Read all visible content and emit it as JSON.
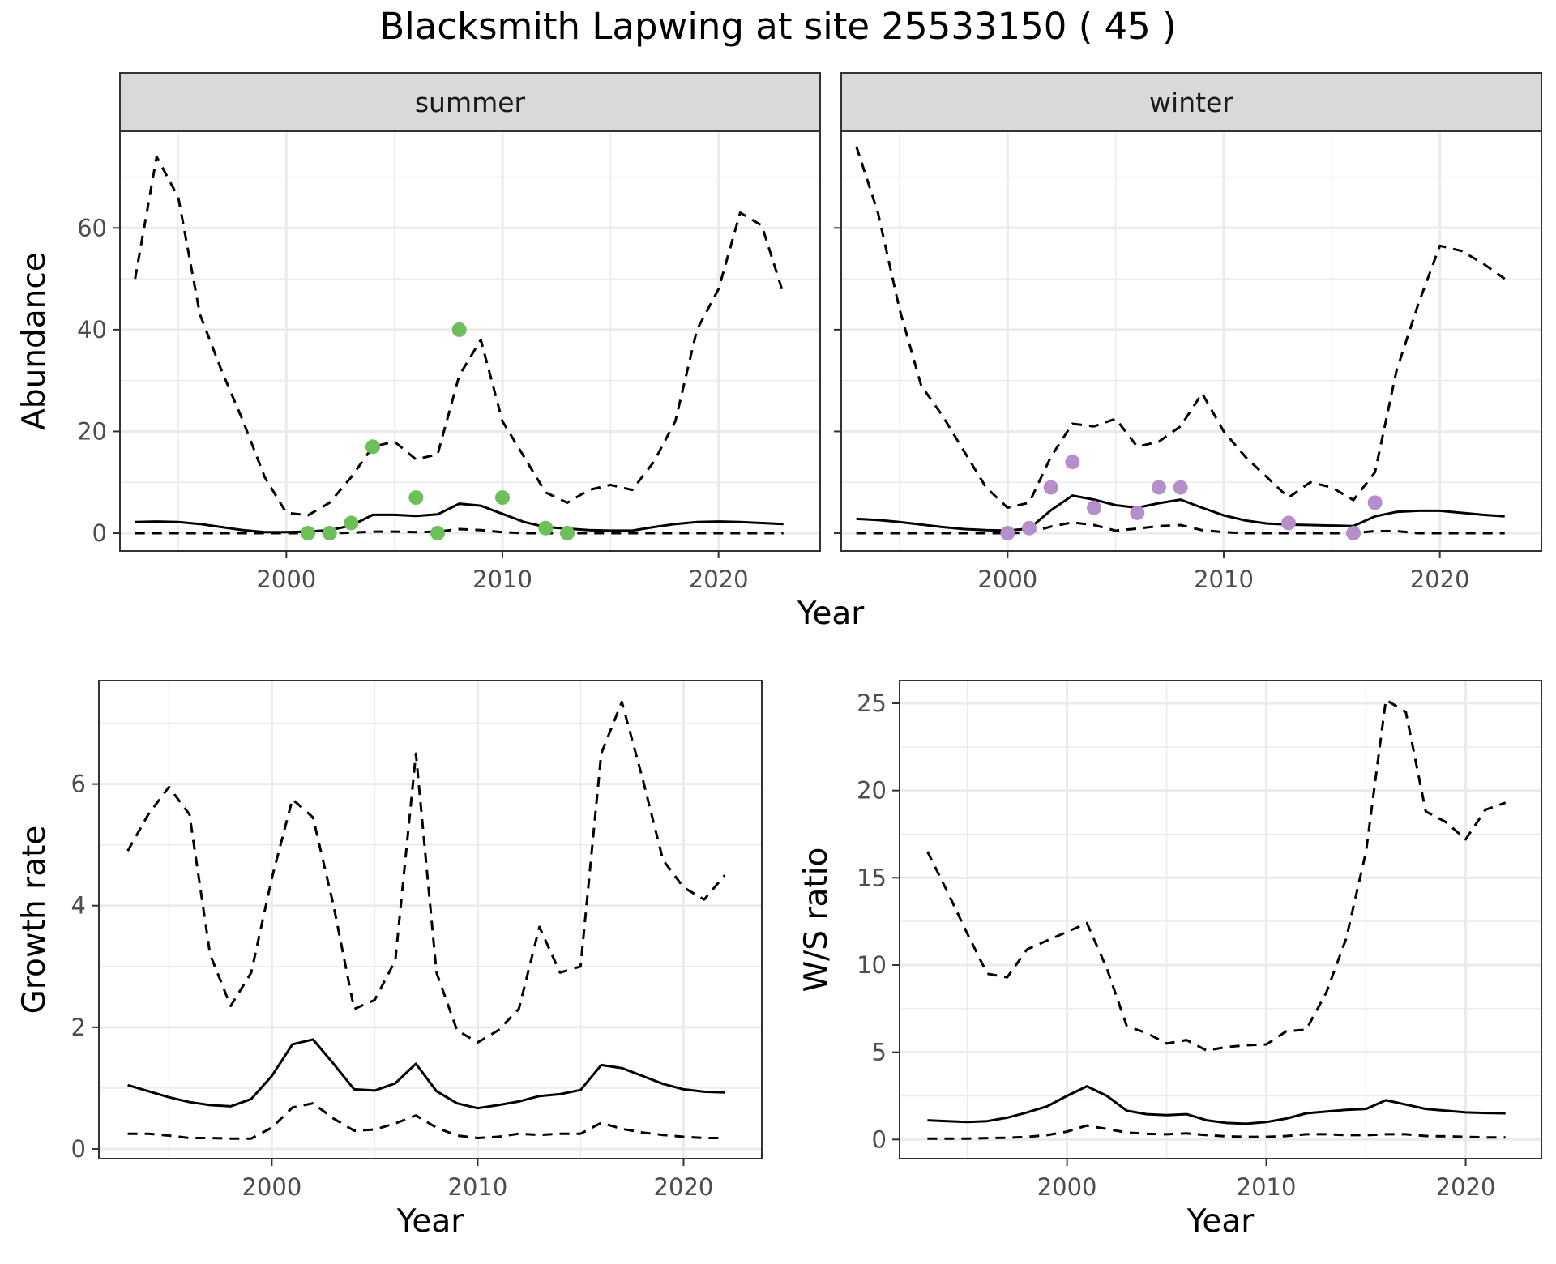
{
  "title": "Blacksmith Lapwing at site 25533150 ( 45 )",
  "colors": {
    "summer_points": "#6dbf5a",
    "winter_points": "#b48fcc",
    "line": "#000000",
    "strip_bg": "#d9d9d9",
    "grid": "#ebebeb"
  },
  "chart_data": [
    {
      "type": "line",
      "panel": "summer",
      "facet_label": "summer",
      "xlabel": "Year",
      "ylabel": "Abundance",
      "xlim": [
        1992.3,
        2024.7
      ],
      "ylim": [
        -3.5,
        79
      ],
      "x_ticks": [
        2000,
        2010,
        2020
      ],
      "y_ticks": [
        0,
        20,
        40,
        60
      ],
      "grid": true,
      "x": [
        1993,
        1994,
        1995,
        1996,
        1997,
        1998,
        1999,
        2000,
        2001,
        2002,
        2003,
        2004,
        2005,
        2006,
        2007,
        2008,
        2009,
        2010,
        2011,
        2012,
        2013,
        2014,
        2015,
        2016,
        2017,
        2018,
        2019,
        2020,
        2021,
        2022,
        2023
      ],
      "series": [
        {
          "style": "dashed",
          "values": [
            50,
            74,
            66,
            43,
            32,
            22,
            11,
            4,
            3.5,
            6,
            11,
            17,
            18,
            14.5,
            15.5,
            31,
            38,
            22,
            15,
            8,
            6,
            8.5,
            9.5,
            8.5,
            14,
            22,
            40,
            48,
            63,
            60.5,
            47
          ]
        },
        {
          "style": "solid",
          "values": [
            2.2,
            2.3,
            2.2,
            1.8,
            1.2,
            0.6,
            0.2,
            0.2,
            0.3,
            0.6,
            1.5,
            3.6,
            3.6,
            3.4,
            3.7,
            5.8,
            5.4,
            3.8,
            2.2,
            1.2,
            0.9,
            0.6,
            0.5,
            0.5,
            1.2,
            1.8,
            2.2,
            2.3,
            2.2,
            2.0,
            1.8
          ]
        },
        {
          "style": "dashed",
          "values": [
            0,
            0,
            0,
            0,
            0,
            0,
            0,
            0,
            0,
            0,
            0.1,
            0.3,
            0.3,
            0.2,
            0.3,
            0.8,
            0.6,
            0.2,
            0,
            0,
            0,
            0,
            0,
            0,
            0,
            0,
            0,
            0,
            0,
            0,
            0
          ]
        }
      ],
      "points": {
        "x": [
          2001,
          2002,
          2003,
          2004,
          2006,
          2007,
          2008,
          2010,
          2012,
          2013
        ],
        "y": [
          0,
          0,
          2,
          17,
          7,
          0,
          40,
          7,
          1,
          0
        ]
      }
    },
    {
      "type": "line",
      "panel": "winter",
      "facet_label": "winter",
      "xlabel": "Year",
      "ylabel": "",
      "xlim": [
        1992.3,
        2024.7
      ],
      "ylim": [
        -3.5,
        79
      ],
      "x_ticks": [
        2000,
        2010,
        2020
      ],
      "y_ticks": [
        0,
        20,
        40,
        60
      ],
      "grid": true,
      "x": [
        1993,
        1994,
        1995,
        1996,
        1997,
        1998,
        1999,
        2000,
        2001,
        2002,
        2003,
        2004,
        2005,
        2006,
        2007,
        2008,
        2009,
        2010,
        2011,
        2012,
        2013,
        2014,
        2015,
        2016,
        2017,
        2018,
        2019,
        2020,
        2021,
        2022,
        2023
      ],
      "series": [
        {
          "style": "dashed",
          "values": [
            76,
            63,
            44,
            29,
            23,
            16,
            9,
            5,
            6,
            15,
            21.5,
            21,
            22.5,
            17,
            18,
            21,
            27.5,
            20,
            15,
            11,
            7,
            10,
            9,
            6.5,
            12,
            32,
            45,
            56.5,
            55.5,
            53,
            50
          ]
        },
        {
          "style": "solid",
          "values": [
            2.8,
            2.6,
            2.2,
            1.7,
            1.2,
            0.8,
            0.6,
            0.5,
            0.9,
            4.5,
            7.4,
            6.6,
            5.5,
            5.0,
            5.9,
            6.6,
            5.0,
            3.5,
            2.5,
            1.9,
            1.7,
            1.6,
            1.5,
            1.4,
            3.3,
            4.2,
            4.4,
            4.4,
            4.0,
            3.6,
            3.3
          ]
        },
        {
          "style": "dashed",
          "values": [
            0,
            0,
            0,
            0,
            0,
            0,
            0,
            0,
            0.1,
            1.3,
            2.1,
            1.6,
            0.5,
            0.9,
            1.4,
            1.6,
            0.6,
            0.2,
            0,
            0,
            0,
            0,
            0,
            0,
            0.4,
            0.4,
            0,
            0,
            0,
            0,
            0
          ]
        }
      ],
      "points": {
        "x": [
          2000,
          2001,
          2002,
          2003,
          2004,
          2006,
          2007,
          2008,
          2013,
          2016,
          2017
        ],
        "y": [
          0,
          1,
          9,
          14,
          5,
          4,
          9,
          9,
          2,
          0,
          6
        ]
      }
    },
    {
      "type": "line",
      "panel": "growth",
      "xlabel": "Year",
      "ylabel": "Growth rate",
      "xlim": [
        1991.6,
        2023.8
      ],
      "ylim": [
        -0.16,
        7.7
      ],
      "x_ticks": [
        2000,
        2010,
        2020
      ],
      "y_ticks": [
        0,
        2,
        4,
        6
      ],
      "grid": true,
      "x": [
        1993,
        1994,
        1995,
        1996,
        1997,
        1998,
        1999,
        2000,
        2001,
        2002,
        2003,
        2004,
        2005,
        2006,
        2007,
        2008,
        2009,
        2010,
        2011,
        2012,
        2013,
        2014,
        2015,
        2016,
        2017,
        2018,
        2019,
        2020,
        2021,
        2022
      ],
      "series": [
        {
          "style": "dashed",
          "values": [
            4.9,
            5.5,
            5.95,
            5.5,
            3.2,
            2.35,
            2.9,
            4.45,
            5.75,
            5.45,
            4.0,
            2.3,
            2.45,
            3.1,
            6.5,
            2.9,
            1.95,
            1.75,
            1.95,
            2.3,
            3.65,
            2.9,
            3.0,
            6.5,
            7.35,
            6.1,
            4.75,
            4.3,
            4.1,
            4.5
          ]
        },
        {
          "style": "solid",
          "values": [
            1.05,
            0.95,
            0.85,
            0.77,
            0.72,
            0.7,
            0.82,
            1.2,
            1.72,
            1.8,
            1.4,
            0.98,
            0.96,
            1.08,
            1.4,
            0.95,
            0.75,
            0.67,
            0.72,
            0.78,
            0.87,
            0.9,
            0.97,
            1.38,
            1.33,
            1.2,
            1.07,
            0.98,
            0.94,
            0.93
          ]
        },
        {
          "style": "dashed",
          "values": [
            0.25,
            0.25,
            0.22,
            0.18,
            0.18,
            0.17,
            0.17,
            0.35,
            0.68,
            0.75,
            0.5,
            0.3,
            0.32,
            0.42,
            0.55,
            0.35,
            0.22,
            0.18,
            0.2,
            0.25,
            0.23,
            0.25,
            0.25,
            0.43,
            0.33,
            0.27,
            0.23,
            0.2,
            0.18,
            0.18
          ]
        }
      ]
    },
    {
      "type": "line",
      "panel": "ws_ratio",
      "xlabel": "Year",
      "ylabel": "W/S ratio",
      "xlim": [
        1991.6,
        2023.8
      ],
      "ylim": [
        -1.1,
        26.3
      ],
      "x_ticks": [
        2000,
        2010,
        2020
      ],
      "y_ticks": [
        0,
        5,
        10,
        15,
        20,
        25
      ],
      "grid": true,
      "x": [
        1993,
        1994,
        1995,
        1996,
        1997,
        1998,
        1999,
        2000,
        2001,
        2002,
        2003,
        2004,
        2005,
        2006,
        2007,
        2008,
        2009,
        2010,
        2011,
        2012,
        2013,
        2014,
        2015,
        2016,
        2017,
        2018,
        2019,
        2020,
        2021,
        2022
      ],
      "series": [
        {
          "style": "dashed",
          "values": [
            16.5,
            14.2,
            11.8,
            9.5,
            9.3,
            10.9,
            11.4,
            11.9,
            12.4,
            9.8,
            6.5,
            6.1,
            5.5,
            5.7,
            5.1,
            5.3,
            5.4,
            5.45,
            6.2,
            6.3,
            8.4,
            11.5,
            16.5,
            25.2,
            24.5,
            18.8,
            18.2,
            17.2,
            18.9,
            19.3
          ]
        },
        {
          "style": "solid",
          "values": [
            1.1,
            1.05,
            1.0,
            1.05,
            1.25,
            1.55,
            1.9,
            2.5,
            3.05,
            2.5,
            1.65,
            1.45,
            1.4,
            1.45,
            1.1,
            0.95,
            0.9,
            1.0,
            1.2,
            1.5,
            1.6,
            1.7,
            1.75,
            2.25,
            2.0,
            1.75,
            1.65,
            1.55,
            1.52,
            1.5
          ]
        },
        {
          "style": "dashed",
          "values": [
            0.05,
            0.05,
            0.05,
            0.08,
            0.1,
            0.15,
            0.25,
            0.45,
            0.8,
            0.6,
            0.4,
            0.32,
            0.3,
            0.35,
            0.25,
            0.18,
            0.15,
            0.15,
            0.2,
            0.3,
            0.3,
            0.25,
            0.25,
            0.3,
            0.3,
            0.2,
            0.18,
            0.15,
            0.12,
            0.12
          ]
        }
      ]
    }
  ]
}
